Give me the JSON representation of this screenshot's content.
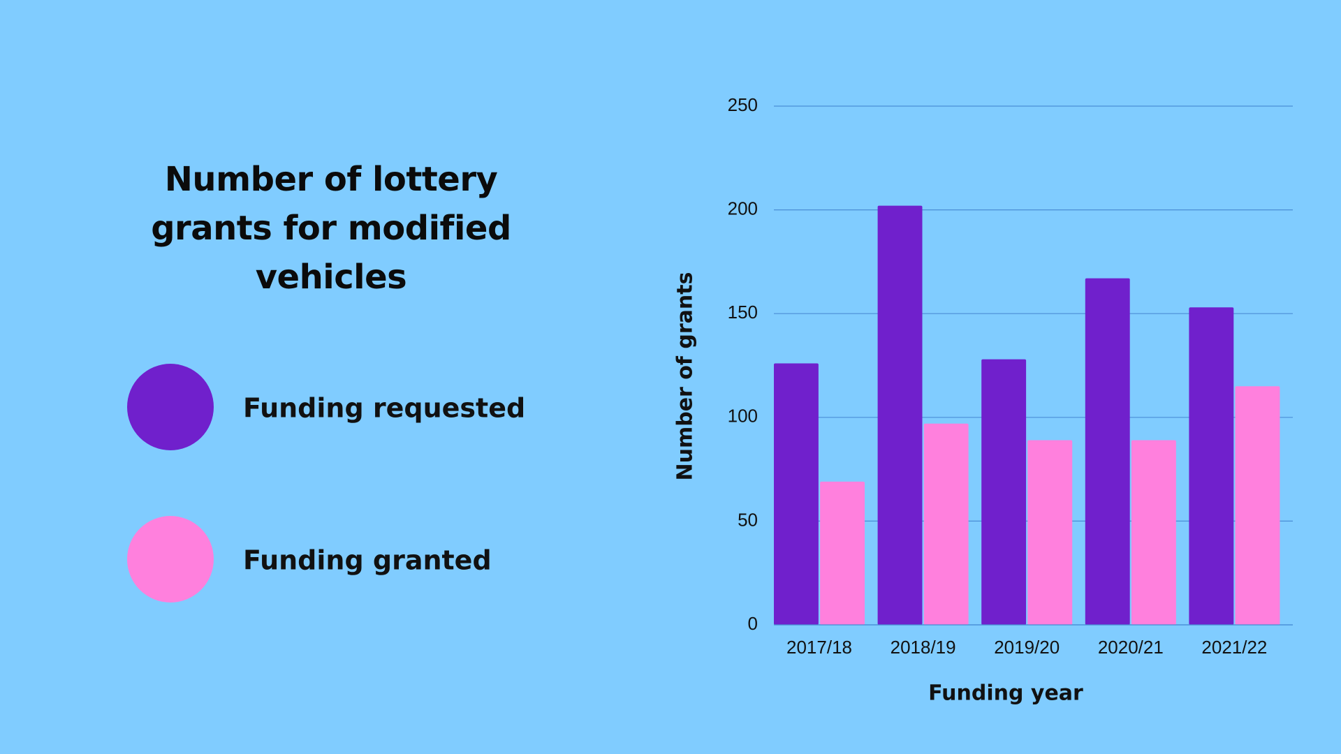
{
  "chart_data": {
    "type": "bar",
    "title": "Number of lottery grants for modified vehicles",
    "x_label": "Funding year",
    "y_label": "Number of grants",
    "categories": [
      "2017/18",
      "2018/19",
      "2019/20",
      "2020/21",
      "2021/22"
    ],
    "series": [
      {
        "name": "Funding requested",
        "color": "#7020cc",
        "values": [
          126,
          202,
          128,
          167,
          153
        ]
      },
      {
        "name": "Funding granted",
        "color": "#ff80dd",
        "values": [
          69,
          97,
          89,
          89,
          115
        ]
      }
    ],
    "ylim": [
      0,
      250
    ],
    "yticks": [
      0,
      50,
      100,
      150,
      200,
      250
    ],
    "grid": true
  }
}
